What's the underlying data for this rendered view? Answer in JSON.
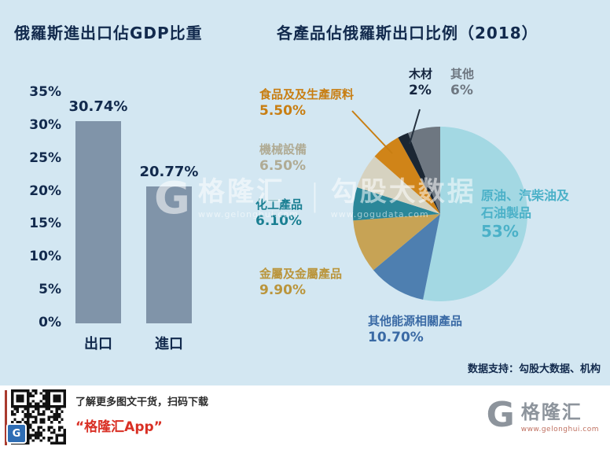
{
  "page": {
    "background": "#d3e7f2",
    "credit": "数据支持：勾股大数据、机构"
  },
  "chart_data": [
    {
      "type": "bar",
      "title": "俄羅斯進出口佔GDP比重",
      "categories": [
        "出口",
        "進口"
      ],
      "values": [
        30.74,
        20.77
      ],
      "value_labels": [
        "30.74%",
        "20.77%"
      ],
      "ylim": [
        0,
        35
      ],
      "y_ticks": [
        "35%",
        "30%",
        "25%",
        "20%",
        "15%",
        "10%",
        "5%",
        "0%"
      ],
      "grid": false,
      "legend": false,
      "bar_color": "#8094a9",
      "text_color": "#122a4d"
    },
    {
      "type": "pie",
      "title": "各產品佔俄羅斯出口比例（2018）",
      "start_angle": "12-oclock, clockwise",
      "slices": [
        {
          "name": "原油、汽柴油及石油製品",
          "value": 53,
          "value_label": "53%",
          "color": "#a3d8e3",
          "label_color": "#4bb1c8",
          "label_lines": [
            "原油、汽柴油及",
            "石油製品"
          ]
        },
        {
          "name": "其他能源相關產品",
          "value": 10.7,
          "value_label": "10.70%",
          "color": "#4e7fb0",
          "label_color": "#3a6aa5",
          "label_lines": [
            "其他能源相關產品"
          ]
        },
        {
          "name": "金屬及金屬產品",
          "value": 9.9,
          "value_label": "9.90%",
          "color": "#c7a355",
          "label_color": "#ba953c",
          "label_lines": [
            "金屬及金屬產品"
          ]
        },
        {
          "name": "化工產品",
          "value": 6.1,
          "value_label": "6.10%",
          "color": "#2b8799",
          "label_color": "#1a7f92",
          "label_lines": [
            "化工產品"
          ]
        },
        {
          "name": "機械設備",
          "value": 6.5,
          "value_label": "6.50%",
          "color": "#d6d2c0",
          "label_color": "#b0ab94",
          "label_lines": [
            "機械設備"
          ]
        },
        {
          "name": "食品及及生產原料",
          "value": 5.5,
          "value_label": "5.50%",
          "color": "#d08418",
          "label_color": "#c87e12",
          "label_lines": [
            "食品及及生產原料"
          ]
        },
        {
          "name": "木材",
          "value": 2,
          "value_label": "2%",
          "color": "#1b2633",
          "label_color": "#15253f",
          "label_lines": [
            "木材"
          ]
        },
        {
          "name": "其他",
          "value": 6,
          "value_label": "6%",
          "color": "#6e7781",
          "label_color": "#6e7781",
          "label_lines": [
            "其他"
          ]
        }
      ]
    }
  ],
  "watermark": {
    "logo": "G",
    "brand": "格隆汇",
    "separator": "|",
    "brand2": "勾股大数据",
    "url1": "www.gelonghui.com",
    "url2": "www.gogudata.com"
  },
  "footer": {
    "promo_line": "了解更多图文干货，扫码下载",
    "app_name": "“格隆汇App”",
    "logo_letter": "G",
    "brand": "格隆汇",
    "brand_url": "www.gelonghui.com",
    "accent_red": "#d93025"
  }
}
